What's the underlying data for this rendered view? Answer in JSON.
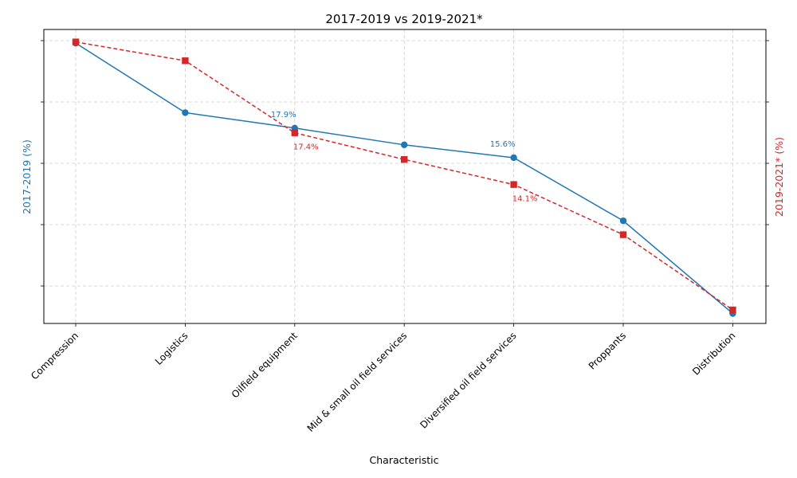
{
  "chart_data": {
    "type": "line",
    "title": "2017-2019 vs 2019-2021*",
    "xlabel": "Characteristic",
    "categories": [
      "Compression",
      "Logistics",
      "Oilfield equipment",
      "Mid & small oil field services",
      "Diversified oil field services",
      "Proppants",
      "Distribution"
    ],
    "series": [
      {
        "name": "2017-2019 (%)",
        "axis": "left",
        "color": "#1f77b4",
        "marker": "circle",
        "line_style": "solid",
        "values": [
          24.5,
          19.1,
          17.9,
          16.6,
          15.6,
          10.7,
          3.5
        ],
        "labels": [
          "",
          "",
          "17.9%",
          "",
          "15.6%",
          "",
          ""
        ]
      },
      {
        "name": "2019-2021* (%)",
        "axis": "right",
        "color": "#d62728",
        "marker": "square",
        "line_style": "dashed",
        "values": [
          23.2,
          22.0,
          17.4,
          15.7,
          14.1,
          10.9,
          6.1
        ],
        "labels": [
          "",
          "",
          "17.4%",
          "",
          "14.1%",
          "",
          ""
        ]
      }
    ],
    "left_axis": {
      "label": "2017-2019 (%)",
      "color": "#1f77b4"
    },
    "right_axis": {
      "label": "2019-2021* (%)",
      "color": "#d62728"
    },
    "grid": true,
    "tick_labels_shown": false
  }
}
